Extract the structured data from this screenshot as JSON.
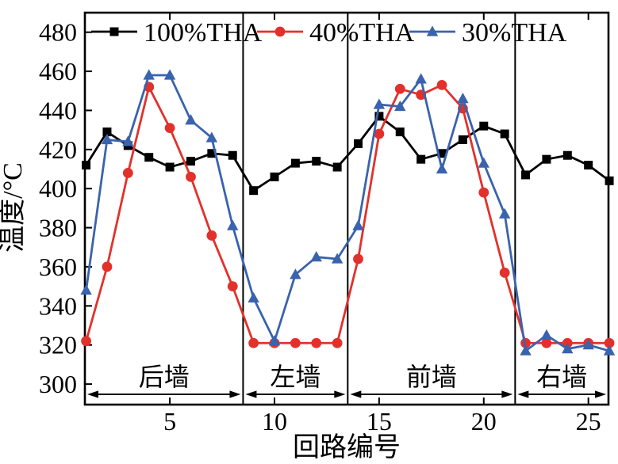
{
  "chart_data": {
    "type": "line",
    "title": "",
    "xlabel": "回路编号",
    "ylabel": "温度/°C",
    "x": [
      1,
      2,
      3,
      4,
      5,
      6,
      7,
      8,
      9,
      10,
      11,
      12,
      13,
      14,
      15,
      16,
      17,
      18,
      19,
      20,
      21,
      22,
      23,
      24,
      25,
      26
    ],
    "xlim": [
      0.94,
      25.96
    ],
    "ylim": [
      289.5,
      490
    ],
    "xticks": [
      5,
      10,
      15,
      20,
      25
    ],
    "yticks": [
      300,
      320,
      340,
      360,
      380,
      400,
      420,
      440,
      460,
      480
    ],
    "grid": false,
    "legend_position": "top-inside-horizontal",
    "frame_color": "#000000",
    "series": [
      {
        "name": "100%THA",
        "color": "#000000",
        "marker": "square",
        "values": [
          412,
          429,
          422,
          416,
          411,
          414,
          418,
          417,
          399,
          406,
          413,
          414,
          411,
          423,
          437,
          429,
          415,
          418,
          425,
          432,
          428,
          407,
          415,
          417,
          412,
          404
        ]
      },
      {
        "name": "40%THA",
        "color": "#e2312b",
        "marker": "circle",
        "values": [
          322,
          360,
          408,
          452,
          431,
          406,
          376,
          350,
          321,
          321,
          321,
          321,
          321,
          364,
          428,
          451,
          448,
          453,
          441,
          398,
          357,
          321,
          321,
          321,
          321,
          321
        ]
      },
      {
        "name": "30%THA",
        "color": "#3a63ad",
        "marker": "triangle",
        "values": [
          348,
          425,
          424,
          458,
          458,
          435,
          426,
          381,
          344,
          322,
          356,
          365,
          364,
          381,
          443,
          442,
          456,
          410,
          446,
          413,
          387,
          317,
          325,
          318,
          320,
          317
        ]
      }
    ],
    "dividers": [
      8.5,
      13.5,
      21.5
    ],
    "regions": [
      {
        "label": "后墙",
        "from": 0.94,
        "to": 8.5
      },
      {
        "label": "左墙",
        "from": 8.5,
        "to": 13.5
      },
      {
        "label": "前墙",
        "from": 13.5,
        "to": 21.5
      },
      {
        "label": "右墙",
        "from": 21.5,
        "to": 25.96
      }
    ]
  }
}
